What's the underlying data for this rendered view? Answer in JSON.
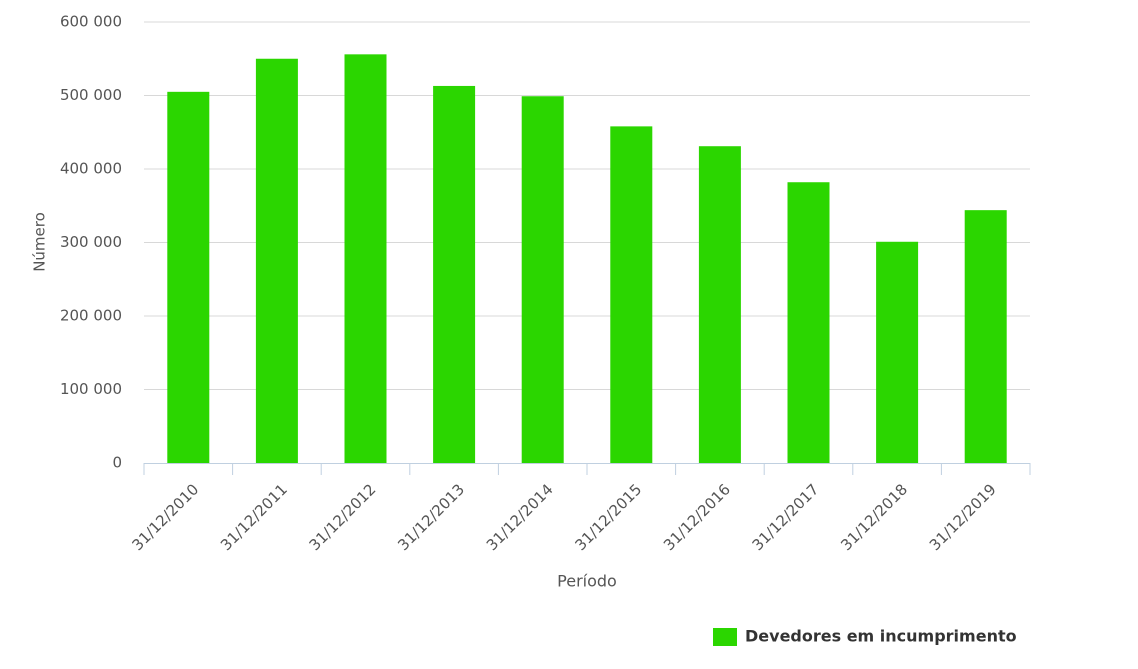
{
  "chart_data": {
    "type": "bar",
    "x_label": "Período",
    "y_label": "Número",
    "categories": [
      "31/12/2010",
      "31/12/2011",
      "31/12/2012",
      "31/12/2013",
      "31/12/2014",
      "31/12/2015",
      "31/12/2016",
      "31/12/2017",
      "31/12/2018",
      "31/12/2019"
    ],
    "series": [
      {
        "name": "Devedores em incumprimento",
        "color": "#2bd600",
        "values": [
          505000,
          550000,
          556000,
          513000,
          499000,
          458000,
          431000,
          382000,
          301000,
          344000
        ]
      }
    ],
    "ylim": [
      0,
      600000
    ],
    "yticks": [
      0,
      {
        "value": 100000,
        "label": "100 000"
      },
      {
        "value": 200000,
        "label": "200 000"
      },
      {
        "value": 300000,
        "label": "300 000"
      },
      {
        "value": 400000,
        "label": "400 000"
      },
      {
        "value": 500000,
        "label": "500 000"
      },
      {
        "value": 600000,
        "label": "600 000"
      }
    ],
    "grid": true,
    "legend": "bottom-right"
  }
}
